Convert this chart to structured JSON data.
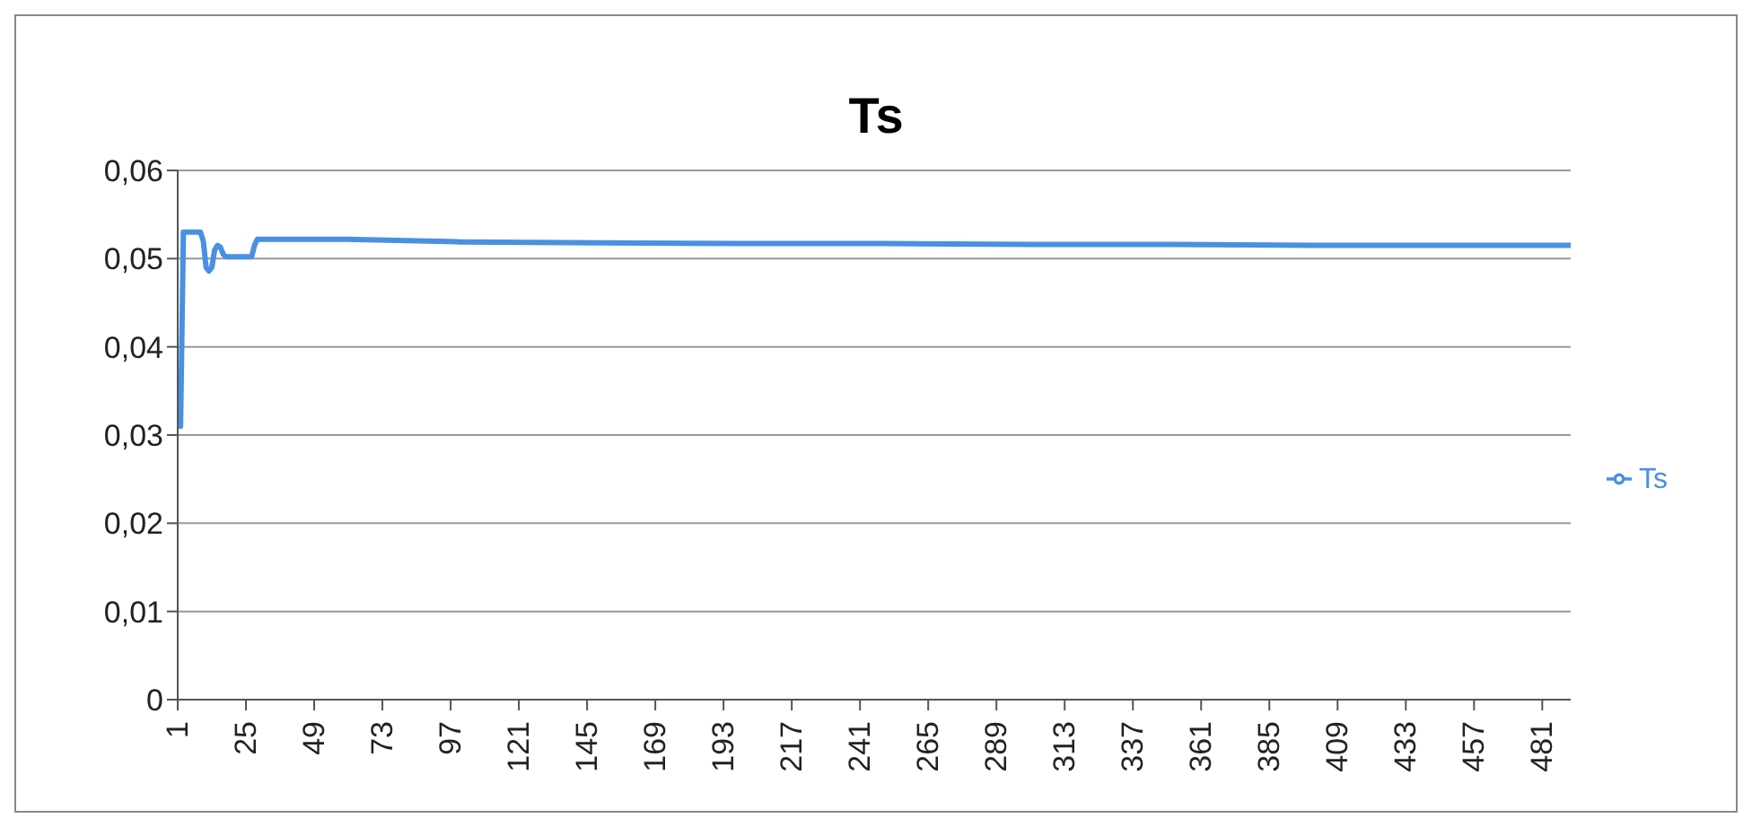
{
  "chart_data": {
    "type": "line",
    "title": "Ts",
    "x": [
      1,
      2,
      3,
      4,
      9,
      10,
      11,
      12,
      13,
      14,
      15,
      16,
      17,
      18,
      19,
      20,
      27,
      28,
      29,
      40,
      60,
      100,
      150,
      200,
      250,
      300,
      350,
      400,
      450,
      491
    ],
    "series": [
      {
        "name": "Ts",
        "color": "#4a90e2",
        "values": [
          0.031,
          0.031,
          0.053,
          0.053,
          0.053,
          0.052,
          0.049,
          0.0486,
          0.049,
          0.051,
          0.0515,
          0.0513,
          0.0505,
          0.0502,
          0.0502,
          0.0502,
          0.0502,
          0.0515,
          0.0522,
          0.0522,
          0.0522,
          0.0519,
          0.0518,
          0.0517,
          0.0517,
          0.0516,
          0.0516,
          0.0515,
          0.0515,
          0.0515
        ]
      }
    ],
    "xlim": [
      1,
      491
    ],
    "xticks": [
      1,
      25,
      49,
      73,
      97,
      121,
      145,
      169,
      193,
      217,
      241,
      265,
      289,
      313,
      337,
      361,
      385,
      409,
      433,
      457,
      481
    ],
    "ylim": [
      0,
      0.06
    ],
    "yticks": [
      {
        "value": 0,
        "label": "0"
      },
      {
        "value": 0.01,
        "label": "0,01"
      },
      {
        "value": 0.02,
        "label": "0,02"
      },
      {
        "value": 0.03,
        "label": "0,03"
      },
      {
        "value": 0.04,
        "label": "0,04"
      },
      {
        "value": 0.05,
        "label": "0,05"
      },
      {
        "value": 0.06,
        "label": "0,06"
      }
    ],
    "grid": "y",
    "legend": "right",
    "marker": "none",
    "line_style": "solid"
  }
}
